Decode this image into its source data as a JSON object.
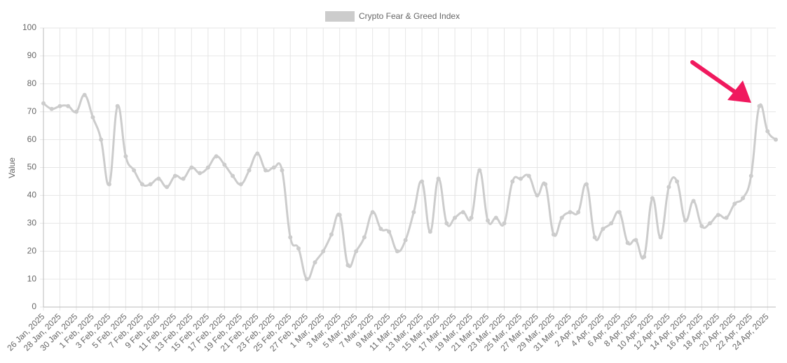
{
  "chart_data": {
    "type": "line",
    "legend": "top",
    "y_label": "Value",
    "categories": [
      "26 Jan, 2025",
      null,
      "28 Jan, 2025",
      null,
      "30 Jan, 2025",
      null,
      "1 Feb, 2025",
      null,
      "3 Feb, 2025",
      null,
      "5 Feb, 2025",
      null,
      "7 Feb, 2025",
      null,
      "9 Feb, 2025",
      null,
      "11 Feb, 2025",
      null,
      "13 Feb, 2025",
      null,
      "15 Feb, 2025",
      null,
      "17 Feb, 2025",
      null,
      "19 Feb, 2025",
      null,
      "21 Feb, 2025",
      null,
      "23 Feb, 2025",
      null,
      "25 Feb, 2025",
      null,
      "27 Feb, 2025",
      null,
      "1 Mar, 2025",
      null,
      "3 Mar, 2025",
      null,
      "5 Mar, 2025",
      null,
      "7 Mar, 2025",
      null,
      "9 Mar, 2025",
      null,
      "11 Mar, 2025",
      null,
      "13 Mar, 2025",
      null,
      "15 Mar, 2025",
      null,
      "17 Mar, 2025",
      null,
      "19 Mar, 2025",
      null,
      "21 Mar, 2025",
      null,
      "23 Mar, 2025",
      null,
      "25 Mar, 2025",
      null,
      "27 Mar, 2025",
      null,
      "29 Mar, 2025",
      null,
      "31 Mar, 2025",
      null,
      "2 Apr, 2025",
      null,
      "4 Apr, 2025",
      null,
      "6 Apr, 2025",
      null,
      "8 Apr, 2025",
      null,
      "10 Apr, 2025",
      null,
      "12 Apr, 2025",
      null,
      "14 Apr, 2025",
      null,
      "16 Apr, 2025",
      null,
      "18 Apr, 2025",
      null,
      "20 Apr, 2025",
      null,
      "22 Apr, 2025",
      null,
      "24 Apr, 2025",
      null
    ],
    "series": [
      {
        "name": "Crypto Fear & Greed Index",
        "color": "#cccccc",
        "values": [
          73,
          71,
          72,
          72,
          70,
          76,
          68,
          60,
          44,
          72,
          54,
          49,
          44,
          44,
          46,
          43,
          47,
          46,
          50,
          48,
          50,
          54,
          51,
          47,
          44,
          49,
          55,
          49,
          50,
          49,
          25,
          21,
          10,
          16,
          20,
          26,
          33,
          15,
          20,
          25,
          34,
          28,
          27,
          20,
          24,
          34,
          45,
          27,
          46,
          30,
          32,
          34,
          32,
          49,
          31,
          32,
          30,
          45,
          46,
          47,
          40,
          44,
          26,
          32,
          34,
          34,
          44,
          25,
          28,
          30,
          34,
          23,
          24,
          18,
          39,
          25,
          43,
          45,
          31,
          38,
          29,
          30,
          33,
          32,
          37,
          39,
          47,
          72,
          63,
          60
        ]
      }
    ],
    "ylim": [
      0,
      100
    ],
    "yticks": [
      0,
      10,
      20,
      30,
      40,
      50,
      60,
      70,
      80,
      90,
      100
    ],
    "grid": true
  }
}
